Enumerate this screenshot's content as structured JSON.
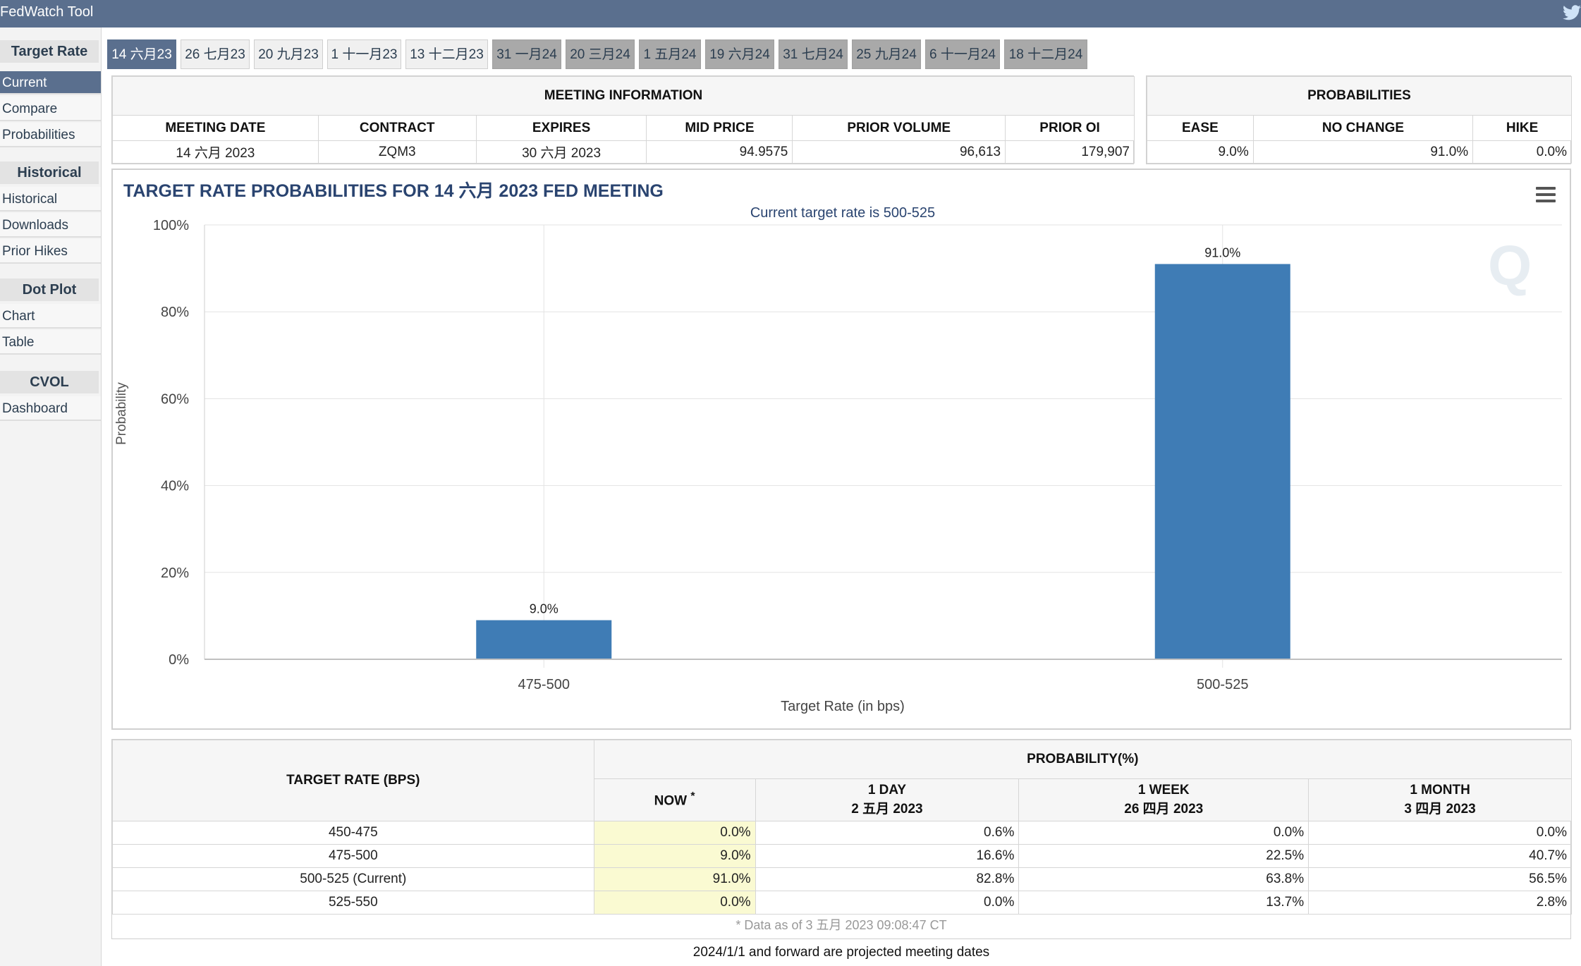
{
  "app": {
    "title": "FedWatch Tool"
  },
  "sidebar": {
    "sections": [
      {
        "heading": "Target Rate",
        "items": [
          "Current",
          "Compare",
          "Probabilities"
        ]
      },
      {
        "heading": "Historical",
        "items": [
          "Historical",
          "Downloads",
          "Prior Hikes"
        ]
      },
      {
        "heading": "Dot Plot",
        "items": [
          "Chart",
          "Table"
        ]
      },
      {
        "heading": "CVOL",
        "items": [
          "Dashboard"
        ]
      }
    ],
    "active_item": "Current"
  },
  "tabs": [
    {
      "label": "14 六月23",
      "state": "active"
    },
    {
      "label": "26 七月23",
      "state": "normal"
    },
    {
      "label": "20 九月23",
      "state": "normal"
    },
    {
      "label": "1 十一月23",
      "state": "normal"
    },
    {
      "label": "13 十二月23",
      "state": "normal"
    },
    {
      "label": "31 一月24",
      "state": "projected"
    },
    {
      "label": "20 三月24",
      "state": "projected"
    },
    {
      "label": "1 五月24",
      "state": "projected"
    },
    {
      "label": "19 六月24",
      "state": "projected"
    },
    {
      "label": "31 七月24",
      "state": "projected"
    },
    {
      "label": "25 九月24",
      "state": "projected"
    },
    {
      "label": "6 十一月24",
      "state": "projected"
    },
    {
      "label": "18 十二月24",
      "state": "projected"
    }
  ],
  "meeting_info": {
    "heading": "MEETING INFORMATION",
    "columns": [
      "MEETING DATE",
      "CONTRACT",
      "EXPIRES",
      "MID PRICE",
      "PRIOR VOLUME",
      "PRIOR OI"
    ],
    "row": [
      "14 六月 2023",
      "ZQM3",
      "30 六月 2023",
      "94.9575",
      "96,613",
      "179,907"
    ]
  },
  "probabilities_box": {
    "heading": "PROBABILITIES",
    "columns": [
      "EASE",
      "NO CHANGE",
      "HIKE"
    ],
    "row": [
      "9.0%",
      "91.0%",
      "0.0%"
    ]
  },
  "chart_data": {
    "type": "bar",
    "title": "TARGET RATE PROBABILITIES FOR 14 六月 2023 FED MEETING",
    "subtitle": "Current target rate is 500-525",
    "categories": [
      "475-500",
      "500-525"
    ],
    "values": [
      9.0,
      91.0
    ],
    "data_labels": [
      "9.0%",
      "91.0%"
    ],
    "xlabel": "Target Rate (in bps)",
    "ylabel": "Probability",
    "ylim": [
      0,
      100
    ],
    "yticks": [
      "0%",
      "20%",
      "40%",
      "60%",
      "80%",
      "100%"
    ],
    "ytick_values": [
      0,
      20,
      40,
      60,
      80,
      100
    ],
    "grid": true,
    "bar_color": "#3f7cb5"
  },
  "prob_table": {
    "col_target": "TARGET RATE (BPS)",
    "col_group": "PROBABILITY(%)",
    "col_now": "NOW",
    "col_now_mark": "*",
    "col_1day": "1 DAY",
    "col_1day_date": "2 五月 2023",
    "col_1week": "1 WEEK",
    "col_1week_date": "26 四月 2023",
    "col_1month": "1 MONTH",
    "col_1month_date": "3 四月 2023",
    "rows": [
      [
        "450-475",
        "0.0%",
        "0.6%",
        "0.0%",
        "0.0%"
      ],
      [
        "475-500",
        "9.0%",
        "16.6%",
        "22.5%",
        "40.7%"
      ],
      [
        "500-525 (Current)",
        "91.0%",
        "82.8%",
        "63.8%",
        "56.5%"
      ],
      [
        "525-550",
        "0.0%",
        "0.0%",
        "13.7%",
        "2.8%"
      ]
    ],
    "footnote": "* Data as of 3 五月 2023 09:08:47 CT"
  },
  "projected_note": "2024/1/1 and forward are projected meeting dates",
  "colors": {
    "header_bar": "#5a6f8e",
    "tab_projected": "#a9a9a9",
    "now_highlight": "#fafad2",
    "title_text": "#2a4470"
  }
}
